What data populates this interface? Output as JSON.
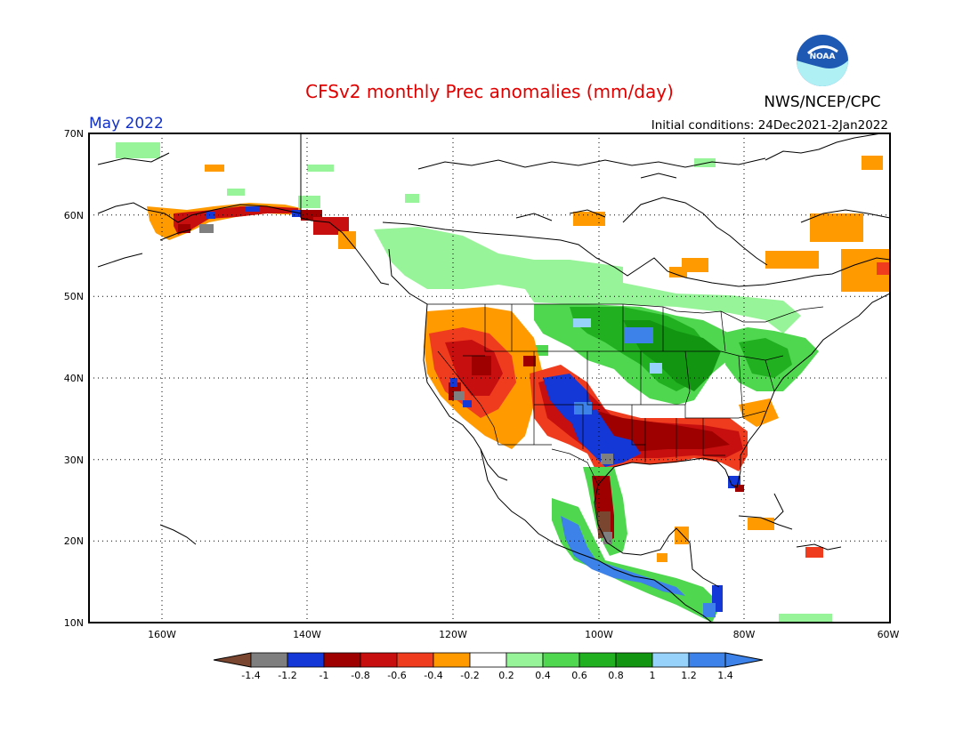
{
  "title": "CFSv2 monthly Prec anomalies (mm/day)",
  "agency": "NWS/NCEP/CPC",
  "logo_text": "NOAA",
  "month_label": "May 2022",
  "initial_conditions": "Initial conditions: 24Dec2021-2Jan2022",
  "lat_labels": [
    "70N",
    "60N",
    "50N",
    "40N",
    "30N",
    "20N",
    "10N"
  ],
  "lon_labels": [
    "160W",
    "140W",
    "120W",
    "100W",
    "80W",
    "60W"
  ],
  "colorbar": {
    "labels": [
      "-1.4",
      "-1.2",
      "-1",
      "-0.8",
      "-0.6",
      "-0.4",
      "-0.2",
      "0.2",
      "0.4",
      "0.6",
      "0.8",
      "1",
      "1.2",
      "1.4"
    ],
    "colors": [
      "#7a4630",
      "#7f7f7f",
      "#1437d8",
      "#9e0000",
      "#c80f0f",
      "#f03c1e",
      "#ff9a00",
      "#ffffff",
      "#98f498",
      "#50d750",
      "#20b020",
      "#129612",
      "#96d2fa",
      "#3c82e8",
      "#3c82e8"
    ]
  },
  "colors": {
    "title": "#e00000",
    "month": "#1030c8",
    "text": "#000000"
  }
}
